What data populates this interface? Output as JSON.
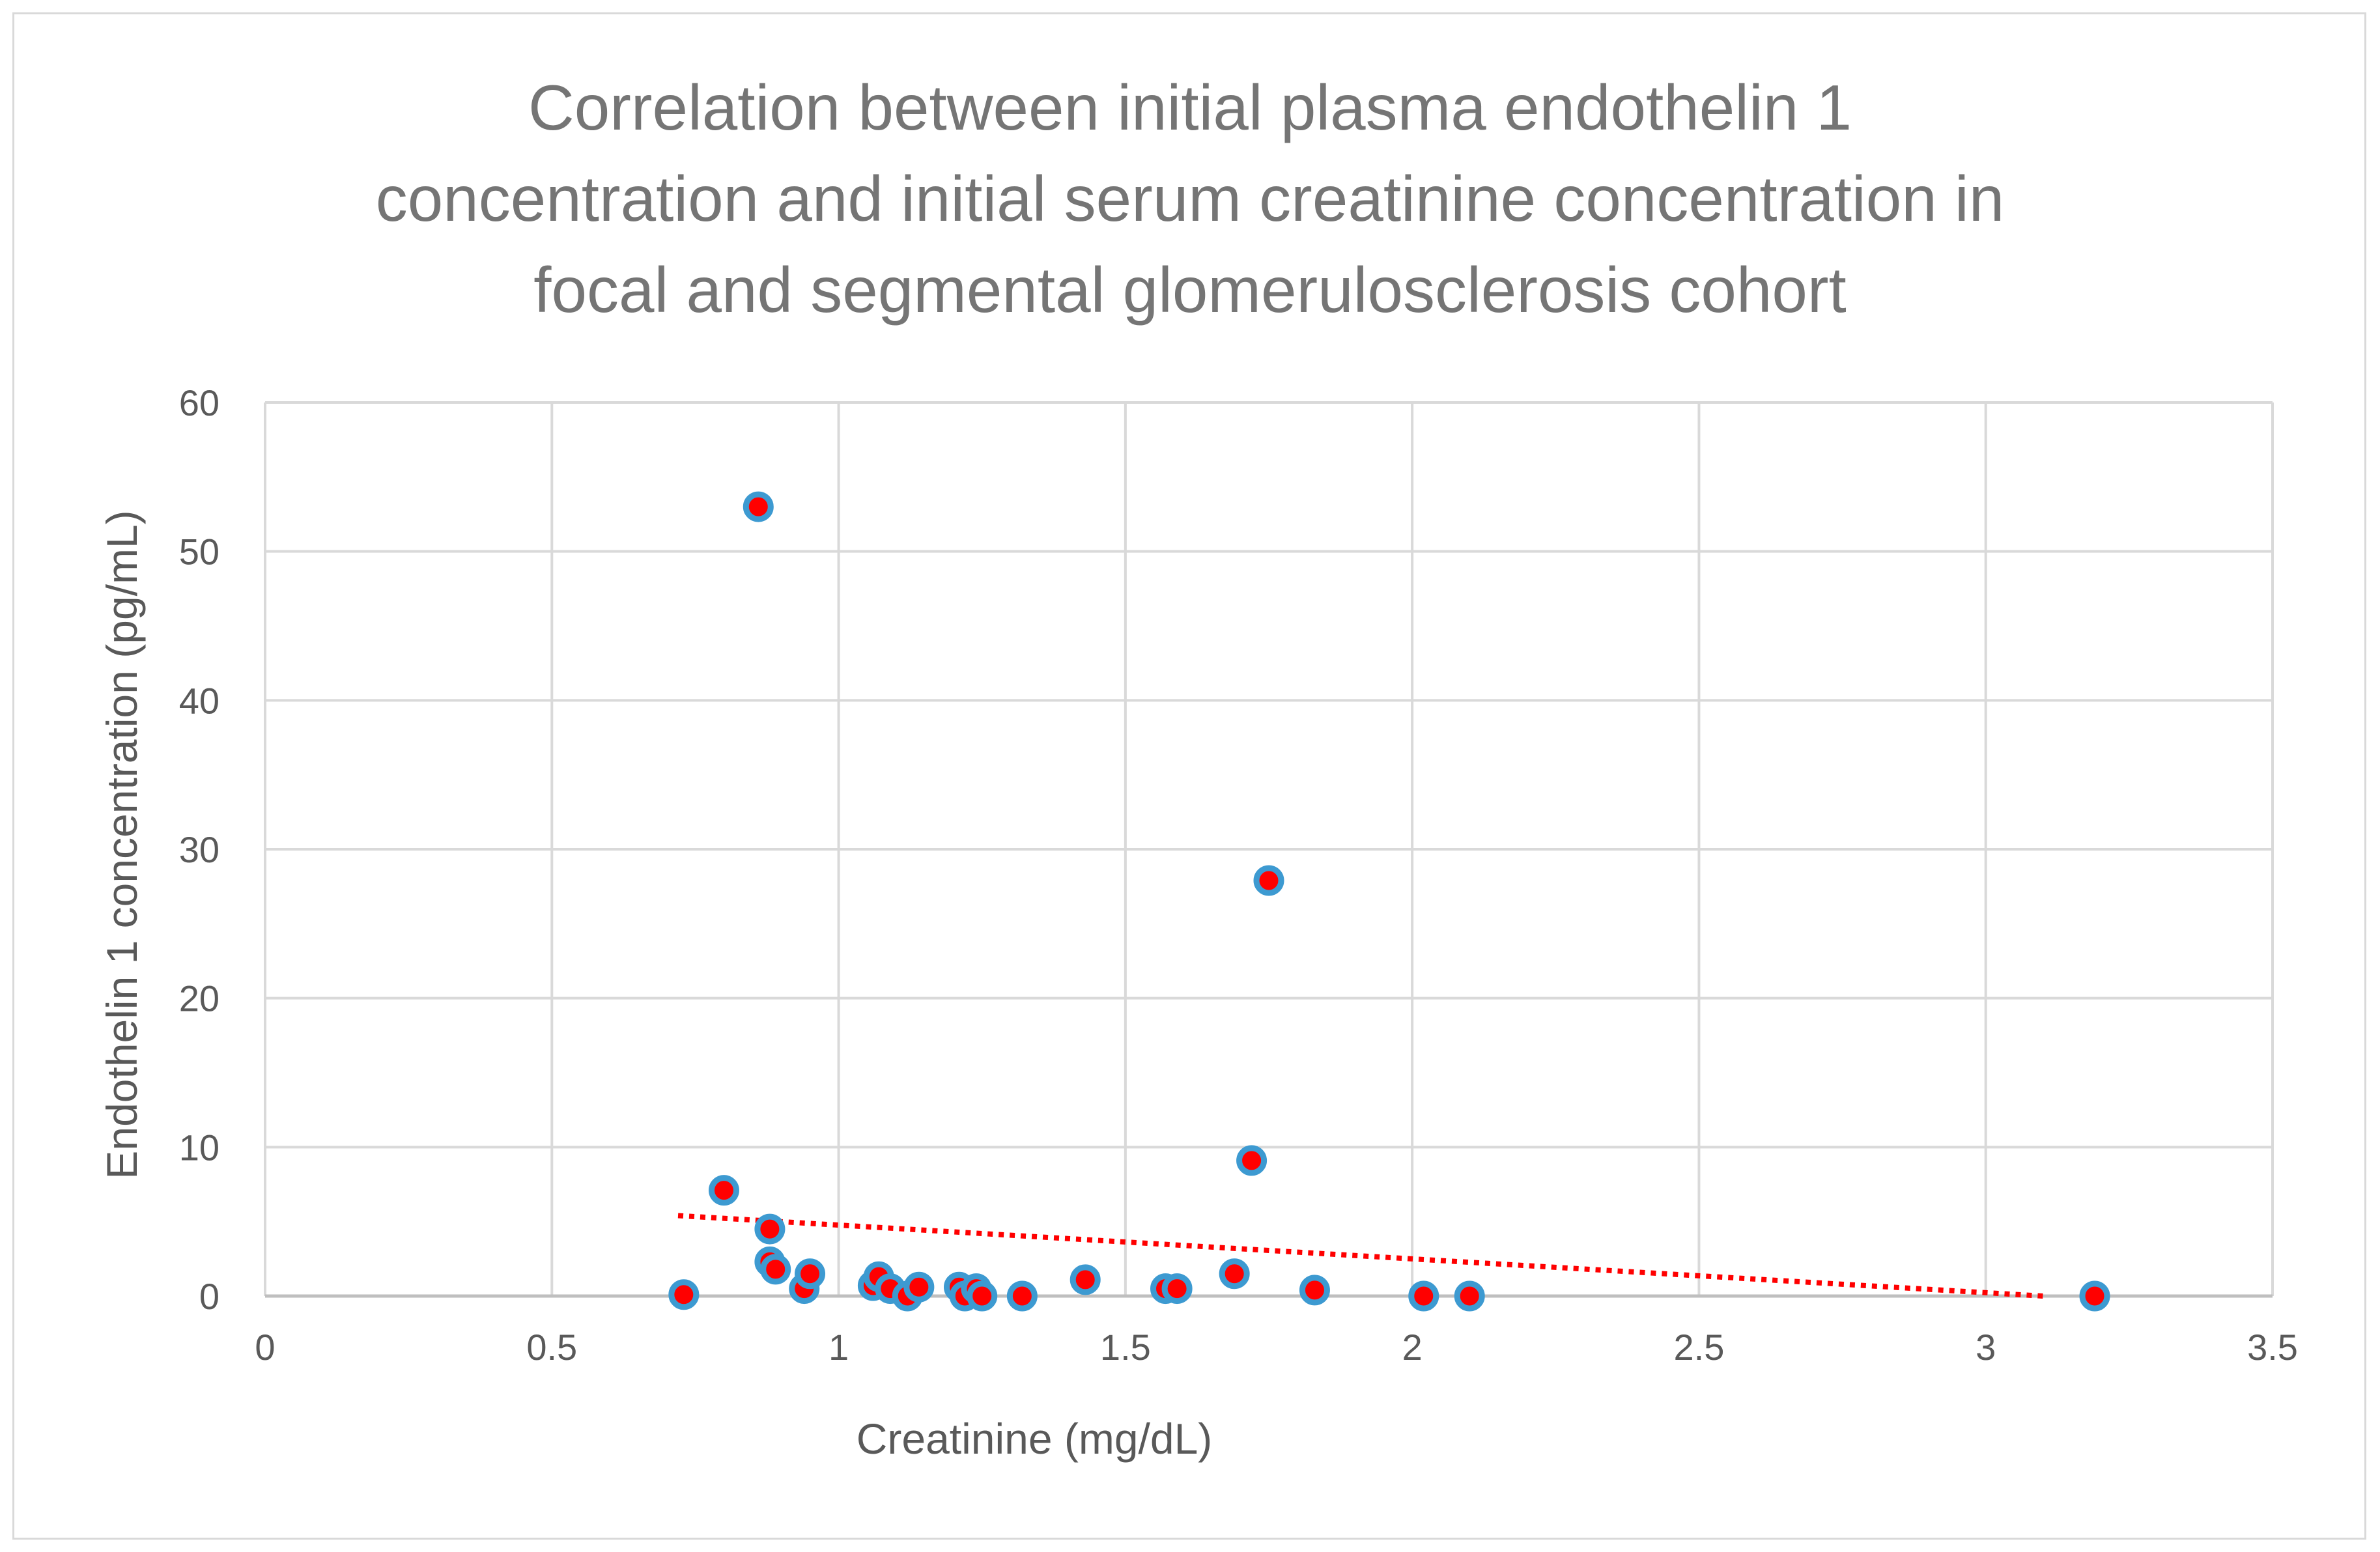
{
  "chart_data": {
    "type": "scatter",
    "title_lines": [
      "Correlation between initial plasma endothelin 1",
      "concentration and initial serum  creatinine concentration in",
      "focal and segmental glomerulosclerosis cohort"
    ],
    "xlabel": "Creatinine (mg/dL)",
    "ylabel": "Endothelin 1 concentration (pg/mL)",
    "xlim": [
      0,
      3.5
    ],
    "ylim": [
      0,
      60
    ],
    "x_ticks": [
      0,
      0.5,
      1,
      1.5,
      2,
      2.5,
      3,
      3.5
    ],
    "y_ticks": [
      0,
      10,
      20,
      30,
      40,
      50,
      60
    ],
    "grid": true,
    "legend": "none",
    "series": [
      {
        "points": [
          {
            "x": 0.73,
            "y": 0.1
          },
          {
            "x": 0.8,
            "y": 7.1
          },
          {
            "x": 0.86,
            "y": 53.0
          },
          {
            "x": 0.88,
            "y": 4.5
          },
          {
            "x": 0.88,
            "y": 2.3
          },
          {
            "x": 0.89,
            "y": 1.8
          },
          {
            "x": 0.94,
            "y": 0.5
          },
          {
            "x": 0.95,
            "y": 1.5
          },
          {
            "x": 1.06,
            "y": 0.7
          },
          {
            "x": 1.07,
            "y": 1.3
          },
          {
            "x": 1.09,
            "y": 0.5
          },
          {
            "x": 1.12,
            "y": 0.0
          },
          {
            "x": 1.14,
            "y": 0.6
          },
          {
            "x": 1.21,
            "y": 0.6
          },
          {
            "x": 1.22,
            "y": 0.0
          },
          {
            "x": 1.24,
            "y": 0.5
          },
          {
            "x": 1.25,
            "y": 0.0
          },
          {
            "x": 1.32,
            "y": 0.0
          },
          {
            "x": 1.43,
            "y": 1.1
          },
          {
            "x": 1.57,
            "y": 0.5
          },
          {
            "x": 1.59,
            "y": 0.5
          },
          {
            "x": 1.69,
            "y": 1.5
          },
          {
            "x": 1.72,
            "y": 9.1
          },
          {
            "x": 1.75,
            "y": 27.9
          },
          {
            "x": 1.83,
            "y": 0.4
          },
          {
            "x": 2.02,
            "y": 0.0
          },
          {
            "x": 2.1,
            "y": 0.0
          },
          {
            "x": 3.19,
            "y": 0.0
          }
        ],
        "marker_fill": "#ff0000",
        "marker_edge": "#3d9ad1"
      }
    ],
    "trendline": {
      "type": "linear",
      "style": "dotted",
      "color": "#ff0000",
      "from": {
        "x": 0.72,
        "y": 5.4
      },
      "to": {
        "x": 3.1,
        "y": 0.0
      }
    },
    "colors": {
      "grid": "#d9d9d9",
      "axis": "#bfbfbf",
      "text": "#595959",
      "title": "#757575"
    }
  }
}
